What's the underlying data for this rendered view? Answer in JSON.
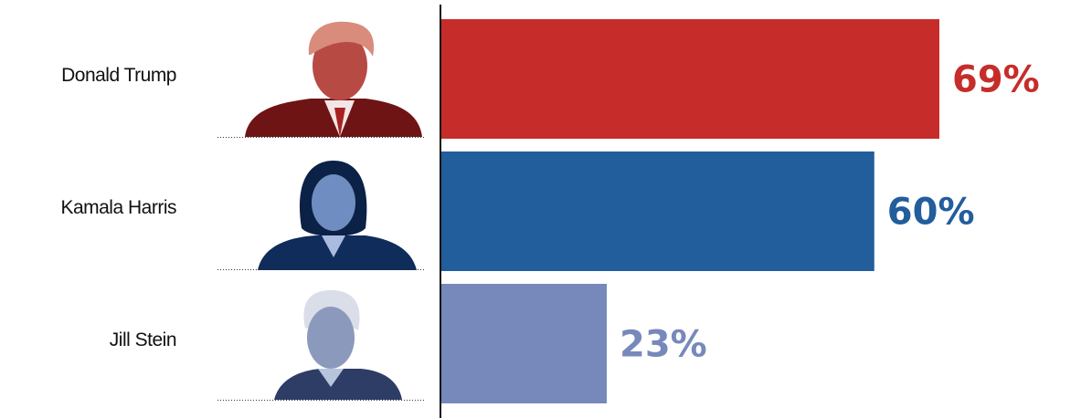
{
  "chart_data": {
    "type": "bar",
    "orientation": "horizontal",
    "categories": [
      "Donald Trump",
      "Kamala Harris",
      "Jill Stein"
    ],
    "values": [
      69,
      60,
      23
    ],
    "value_labels": [
      "69%",
      "60%",
      "23%"
    ],
    "colors": [
      "#c62d2a",
      "#225d9c",
      "#7789bb"
    ]
  }
}
